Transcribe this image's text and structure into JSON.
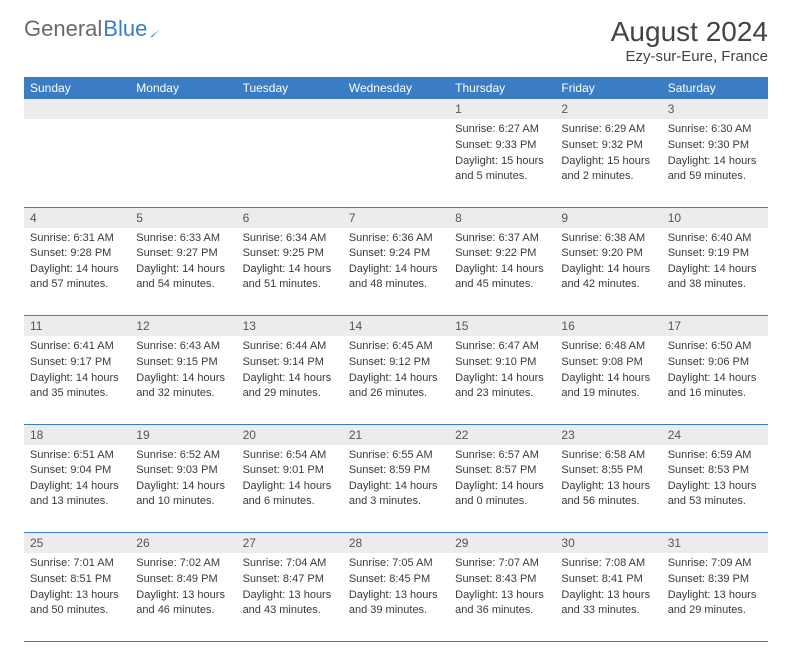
{
  "brand": {
    "part1": "General",
    "part2": "Blue"
  },
  "title": {
    "month": "August 2024",
    "location": "Ezy-sur-Eure, France"
  },
  "colors": {
    "header_blue": "#3b7dc4",
    "row_grey": "#ececec",
    "text": "#3a3a3a",
    "bg": "#ffffff"
  },
  "day_headers": [
    "Sunday",
    "Monday",
    "Tuesday",
    "Wednesday",
    "Thursday",
    "Friday",
    "Saturday"
  ],
  "weeks": [
    [
      null,
      null,
      null,
      null,
      {
        "n": "1",
        "sr": "6:27 AM",
        "ss": "9:33 PM",
        "dl": "15 hours and 5 minutes."
      },
      {
        "n": "2",
        "sr": "6:29 AM",
        "ss": "9:32 PM",
        "dl": "15 hours and 2 minutes."
      },
      {
        "n": "3",
        "sr": "6:30 AM",
        "ss": "9:30 PM",
        "dl": "14 hours and 59 minutes."
      }
    ],
    [
      {
        "n": "4",
        "sr": "6:31 AM",
        "ss": "9:28 PM",
        "dl": "14 hours and 57 minutes."
      },
      {
        "n": "5",
        "sr": "6:33 AM",
        "ss": "9:27 PM",
        "dl": "14 hours and 54 minutes."
      },
      {
        "n": "6",
        "sr": "6:34 AM",
        "ss": "9:25 PM",
        "dl": "14 hours and 51 minutes."
      },
      {
        "n": "7",
        "sr": "6:36 AM",
        "ss": "9:24 PM",
        "dl": "14 hours and 48 minutes."
      },
      {
        "n": "8",
        "sr": "6:37 AM",
        "ss": "9:22 PM",
        "dl": "14 hours and 45 minutes."
      },
      {
        "n": "9",
        "sr": "6:38 AM",
        "ss": "9:20 PM",
        "dl": "14 hours and 42 minutes."
      },
      {
        "n": "10",
        "sr": "6:40 AM",
        "ss": "9:19 PM",
        "dl": "14 hours and 38 minutes."
      }
    ],
    [
      {
        "n": "11",
        "sr": "6:41 AM",
        "ss": "9:17 PM",
        "dl": "14 hours and 35 minutes."
      },
      {
        "n": "12",
        "sr": "6:43 AM",
        "ss": "9:15 PM",
        "dl": "14 hours and 32 minutes."
      },
      {
        "n": "13",
        "sr": "6:44 AM",
        "ss": "9:14 PM",
        "dl": "14 hours and 29 minutes."
      },
      {
        "n": "14",
        "sr": "6:45 AM",
        "ss": "9:12 PM",
        "dl": "14 hours and 26 minutes."
      },
      {
        "n": "15",
        "sr": "6:47 AM",
        "ss": "9:10 PM",
        "dl": "14 hours and 23 minutes."
      },
      {
        "n": "16",
        "sr": "6:48 AM",
        "ss": "9:08 PM",
        "dl": "14 hours and 19 minutes."
      },
      {
        "n": "17",
        "sr": "6:50 AM",
        "ss": "9:06 PM",
        "dl": "14 hours and 16 minutes."
      }
    ],
    [
      {
        "n": "18",
        "sr": "6:51 AM",
        "ss": "9:04 PM",
        "dl": "14 hours and 13 minutes."
      },
      {
        "n": "19",
        "sr": "6:52 AM",
        "ss": "9:03 PM",
        "dl": "14 hours and 10 minutes."
      },
      {
        "n": "20",
        "sr": "6:54 AM",
        "ss": "9:01 PM",
        "dl": "14 hours and 6 minutes."
      },
      {
        "n": "21",
        "sr": "6:55 AM",
        "ss": "8:59 PM",
        "dl": "14 hours and 3 minutes."
      },
      {
        "n": "22",
        "sr": "6:57 AM",
        "ss": "8:57 PM",
        "dl": "14 hours and 0 minutes."
      },
      {
        "n": "23",
        "sr": "6:58 AM",
        "ss": "8:55 PM",
        "dl": "13 hours and 56 minutes."
      },
      {
        "n": "24",
        "sr": "6:59 AM",
        "ss": "8:53 PM",
        "dl": "13 hours and 53 minutes."
      }
    ],
    [
      {
        "n": "25",
        "sr": "7:01 AM",
        "ss": "8:51 PM",
        "dl": "13 hours and 50 minutes."
      },
      {
        "n": "26",
        "sr": "7:02 AM",
        "ss": "8:49 PM",
        "dl": "13 hours and 46 minutes."
      },
      {
        "n": "27",
        "sr": "7:04 AM",
        "ss": "8:47 PM",
        "dl": "13 hours and 43 minutes."
      },
      {
        "n": "28",
        "sr": "7:05 AM",
        "ss": "8:45 PM",
        "dl": "13 hours and 39 minutes."
      },
      {
        "n": "29",
        "sr": "7:07 AM",
        "ss": "8:43 PM",
        "dl": "13 hours and 36 minutes."
      },
      {
        "n": "30",
        "sr": "7:08 AM",
        "ss": "8:41 PM",
        "dl": "13 hours and 33 minutes."
      },
      {
        "n": "31",
        "sr": "7:09 AM",
        "ss": "8:39 PM",
        "dl": "13 hours and 29 minutes."
      }
    ]
  ],
  "labels": {
    "sunrise": "Sunrise:",
    "sunset": "Sunset:",
    "daylight": "Daylight:"
  }
}
